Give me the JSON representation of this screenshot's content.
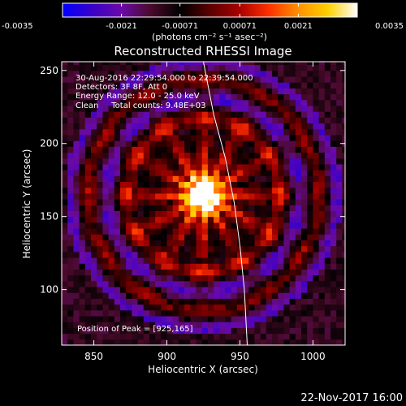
{
  "chart_data": {
    "type": "heatmap",
    "title": "Reconstructed RHESSI Image",
    "xlabel": "Heliocentric X (arcsec)",
    "ylabel": "Heliocentric Y (arcsec)",
    "xlim": [
      828,
      1022
    ],
    "ylim": [
      62,
      256
    ],
    "x_ticks": [
      850,
      900,
      950,
      1000
    ],
    "y_ticks": [
      100,
      150,
      200,
      250
    ],
    "x_tick_labels": [
      "850",
      "900",
      "950",
      "1000"
    ],
    "y_tick_labels": [
      "100",
      "150",
      "200",
      "250"
    ],
    "grid": false,
    "colorbar": {
      "min": -0.0035,
      "max": 0.0035,
      "tick_values": [
        -0.0035,
        -0.0021,
        -0.00071,
        0.00071,
        0.0021,
        0.0035
      ],
      "tick_labels": [
        "-0.0035",
        "-0.0021",
        "-0.00071",
        "0.00071",
        "0.0021",
        "0.0035"
      ],
      "units_label": "(photons cm⁻² s⁻¹ asec⁻²)",
      "colormap": [
        "#0000ff",
        "#3a00c8",
        "#6a0aa8",
        "#4a0a2a",
        "#000000",
        "#5a0000",
        "#a80000",
        "#ff3000",
        "#ff9000",
        "#ffd000",
        "#ffffff"
      ]
    },
    "source_peak": {
      "x": 925,
      "y": 165
    },
    "background_value": -0.0012,
    "limb_arc": [
      [
        925,
        256
      ],
      [
        932,
        220
      ],
      [
        940,
        190
      ],
      [
        946,
        160
      ],
      [
        950,
        130
      ],
      [
        953,
        100
      ],
      [
        955,
        62
      ]
    ],
    "annotations": [
      "30-Aug-2016 22:29:54.000 to 22:39:54.000",
      "Detectors: 3F 8F, Att 0",
      "Energy Range: 12.0 - 25.0 keV",
      "Clean     Total counts: 9.48E+03"
    ],
    "peak_label": "Position of Peak = [925,165]"
  },
  "footer": {
    "date": "22-Nov-2017 16:00"
  }
}
